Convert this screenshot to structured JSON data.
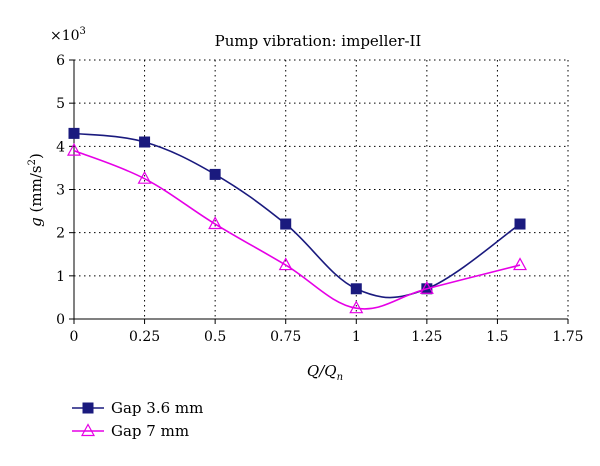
{
  "chart_data": {
    "type": "line",
    "title": "Pump vibration: impeller-II",
    "scale_label": "×10",
    "scale_exponent": "3",
    "ylabel": {
      "g": "g",
      "paren_open": " (mm/s",
      "sup": "2",
      "paren_close": ")"
    },
    "xlabel": {
      "Q": "Q",
      "slash": "/",
      "Qn": "Q",
      "sub": "n"
    },
    "xlim": [
      0,
      1.75
    ],
    "ylim": [
      0,
      6
    ],
    "xticks": [
      "0",
      "0.25",
      "0.5",
      "0.75",
      "1",
      "1.25",
      "1.5",
      "1.75"
    ],
    "yticks": [
      "0",
      "1",
      "2",
      "3",
      "4",
      "5",
      "6"
    ],
    "grid": true,
    "legend_position": "bottom-left",
    "series": [
      {
        "name": "Gap 3.6 mm",
        "marker": "square",
        "color": "#1a1a7e",
        "x": [
          0,
          0.25,
          0.5,
          0.75,
          1,
          1.25,
          1.58
        ],
        "y": [
          4.3,
          4.1,
          3.35,
          2.2,
          0.7,
          0.7,
          2.2
        ]
      },
      {
        "name": "Gap 7 mm",
        "marker": "triangle",
        "color": "#e600e6",
        "x": [
          0,
          0.25,
          0.5,
          0.75,
          1,
          1.25,
          1.58
        ],
        "y": [
          3.9,
          3.25,
          2.2,
          1.25,
          0.25,
          0.7,
          1.25
        ]
      }
    ]
  }
}
